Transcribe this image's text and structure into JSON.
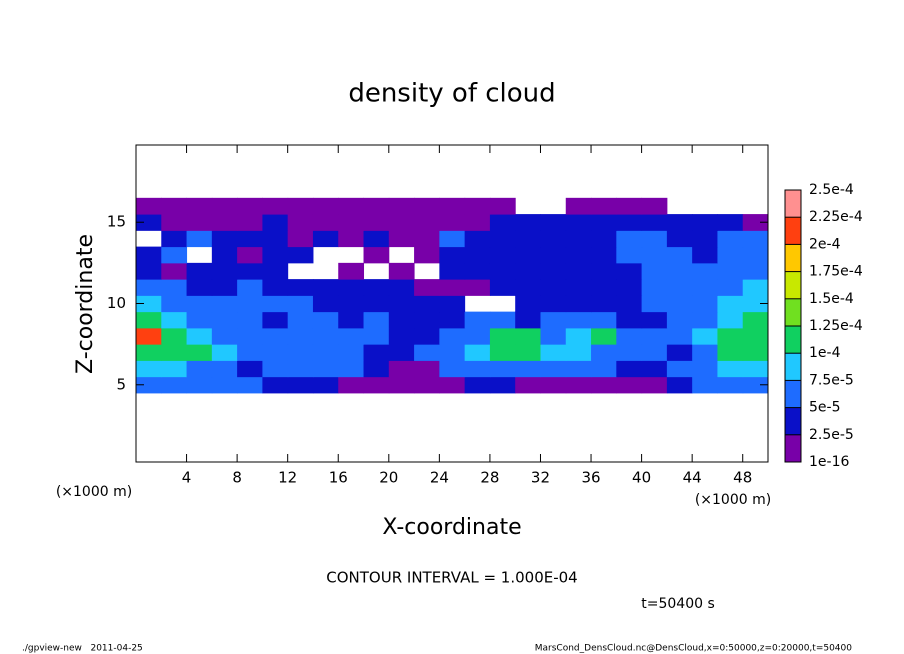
{
  "chart_data": {
    "type": "contour",
    "title": "density of cloud",
    "x_label": "X-coordinate",
    "y_label": "Z-coordinate",
    "x_unit": "(×1000 m)",
    "y_unit": "(×1000 m)",
    "contour_note": "CONTOUR INTERVAL = 1.000E-04",
    "time_label": "t=50400 s",
    "footer_left": "./gpview-new   2011-04-25",
    "footer_right": "MarsCond_DensCloud.nc@DensCloud,x=0:50000,z=0:20000,t=50400",
    "xlim": [
      0,
      50
    ],
    "ylim": [
      0.25,
      19.75
    ],
    "xticks": [
      4,
      8,
      12,
      16,
      20,
      24,
      28,
      32,
      36,
      40,
      44,
      48
    ],
    "yticks": [
      5,
      10,
      15
    ],
    "x": [
      1,
      3,
      5,
      7,
      9,
      11,
      13,
      15,
      17,
      19,
      21,
      23,
      25,
      27,
      29,
      31,
      33,
      35,
      37,
      39,
      41,
      43,
      45,
      47,
      49
    ],
    "z": [
      5,
      6,
      7,
      8,
      9,
      10,
      11,
      12,
      13,
      14,
      15,
      16
    ],
    "values": [
      [
        7e-05,
        7e-05,
        5e-05,
        5e-05,
        5e-05,
        3e-05,
        3e-05,
        3e-05,
        1e-05,
        1e-05,
        1e-05,
        1e-05,
        1e-05,
        3e-05,
        3e-05,
        1e-05,
        1e-05,
        1e-05,
        1e-05,
        1e-05,
        1e-05,
        3e-05,
        5e-05,
        7e-05,
        7e-05
      ],
      [
        9e-05,
        9e-05,
        7e-05,
        7e-05,
        3e-05,
        5e-05,
        5e-05,
        5e-05,
        5e-05,
        3e-05,
        1e-05,
        1e-05,
        5e-05,
        5e-05,
        7e-05,
        5e-05,
        5e-05,
        5e-05,
        5e-05,
        3e-05,
        3e-05,
        7e-05,
        7e-05,
        9e-05,
        9e-05
      ],
      [
        0.00011,
        0.00011,
        0.00011,
        9e-05,
        5e-05,
        5e-05,
        7e-05,
        7e-05,
        5e-05,
        3e-05,
        3e-05,
        5e-05,
        5e-05,
        9e-05,
        0.00011,
        0.00011,
        9e-05,
        9e-05,
        5e-05,
        5e-05,
        5e-05,
        3e-05,
        7e-05,
        0.00011,
        0.00011
      ],
      [
        0.00021,
        0.00011,
        9e-05,
        5e-05,
        5e-05,
        5e-05,
        7e-05,
        5e-05,
        5e-05,
        5e-05,
        3e-05,
        3e-05,
        5e-05,
        7e-05,
        0.00011,
        0.00011,
        7e-05,
        9e-05,
        0.00011,
        5e-05,
        5e-05,
        5e-05,
        9e-05,
        0.00011,
        0.00011
      ],
      [
        0.00011,
        9e-05,
        7e-05,
        5e-05,
        7e-05,
        3e-05,
        5e-05,
        5e-05,
        3e-05,
        5e-05,
        3e-05,
        3e-05,
        3e-05,
        7e-05,
        5e-05,
        3e-05,
        5e-05,
        5e-05,
        5e-05,
        3e-05,
        3e-05,
        5e-05,
        7e-05,
        9e-05,
        0.00011
      ],
      [
        9e-05,
        5e-05,
        5e-05,
        5e-05,
        5e-05,
        5e-05,
        5e-05,
        3e-05,
        3e-05,
        3e-05,
        3e-05,
        3e-05,
        3e-05,
        null,
        null,
        3e-05,
        3e-05,
        3e-05,
        3e-05,
        3e-05,
        5e-05,
        7e-05,
        7e-05,
        9e-05,
        9e-05
      ],
      [
        5e-05,
        5e-05,
        3e-05,
        3e-05,
        5e-05,
        3e-05,
        3e-05,
        3e-05,
        3e-05,
        3e-05,
        3e-05,
        1e-05,
        1e-05,
        1e-05,
        3e-05,
        3e-05,
        3e-05,
        3e-05,
        3e-05,
        3e-05,
        5e-05,
        5e-05,
        7e-05,
        7e-05,
        9e-05
      ],
      [
        3e-05,
        1e-05,
        3e-05,
        3e-05,
        3e-05,
        3e-05,
        null,
        null,
        1e-05,
        null,
        1e-05,
        null,
        3e-05,
        3e-05,
        3e-05,
        3e-05,
        3e-05,
        3e-05,
        3e-05,
        3e-05,
        5e-05,
        5e-05,
        5e-05,
        7e-05,
        7e-05
      ],
      [
        3e-05,
        5e-05,
        null,
        3e-05,
        1e-05,
        3e-05,
        3e-05,
        null,
        null,
        1e-05,
        null,
        1e-05,
        3e-05,
        3e-05,
        3e-05,
        3e-05,
        3e-05,
        3e-05,
        3e-05,
        5e-05,
        7e-05,
        7e-05,
        3e-05,
        7e-05,
        5e-05
      ],
      [
        null,
        3e-05,
        5e-05,
        3e-05,
        3e-05,
        3e-05,
        1e-05,
        3e-05,
        1e-05,
        3e-05,
        1e-05,
        1e-05,
        5e-05,
        3e-05,
        3e-05,
        3e-05,
        3e-05,
        3e-05,
        3e-05,
        5e-05,
        7e-05,
        3e-05,
        3e-05,
        7e-05,
        5e-05
      ],
      [
        3e-05,
        1e-05,
        1e-05,
        1e-05,
        1e-05,
        3e-05,
        1e-05,
        1e-05,
        1e-05,
        1e-05,
        1e-05,
        1e-05,
        1e-05,
        1e-05,
        3e-05,
        3e-05,
        3e-05,
        3e-05,
        3e-05,
        3e-05,
        3e-05,
        3e-05,
        3e-05,
        3e-05,
        1e-05
      ],
      [
        1e-05,
        1e-05,
        1e-05,
        1e-05,
        1e-05,
        1e-05,
        1e-05,
        1e-05,
        1e-05,
        1e-05,
        1e-05,
        1e-05,
        1e-05,
        1e-05,
        1e-05,
        null,
        null,
        1e-05,
        1e-05,
        1e-05,
        1e-05,
        null,
        null,
        null,
        null
      ]
    ],
    "levels": [
      {
        "value": 1e-16,
        "label": "1e-16"
      },
      {
        "value": 2.5e-05,
        "label": "2.5e-5"
      },
      {
        "value": 5e-05,
        "label": "5e-5"
      },
      {
        "value": 7.5e-05,
        "label": "7.5e-5"
      },
      {
        "value": 0.0001,
        "label": "1e-4"
      },
      {
        "value": 0.000125,
        "label": "1.25e-4"
      },
      {
        "value": 0.00015,
        "label": "1.5e-4"
      },
      {
        "value": 0.000175,
        "label": "1.75e-4"
      },
      {
        "value": 0.0002,
        "label": "2e-4"
      },
      {
        "value": 0.000225,
        "label": "2.25e-4"
      },
      {
        "value": 0.00025,
        "label": "2.5e-4"
      }
    ],
    "colors": [
      "#7800a8",
      "#0a10c8",
      "#1e6cff",
      "#20c8ff",
      "#10d060",
      "#70e020",
      "#c8e800",
      "#ffc800",
      "#ff4010",
      "#ff9090"
    ]
  }
}
